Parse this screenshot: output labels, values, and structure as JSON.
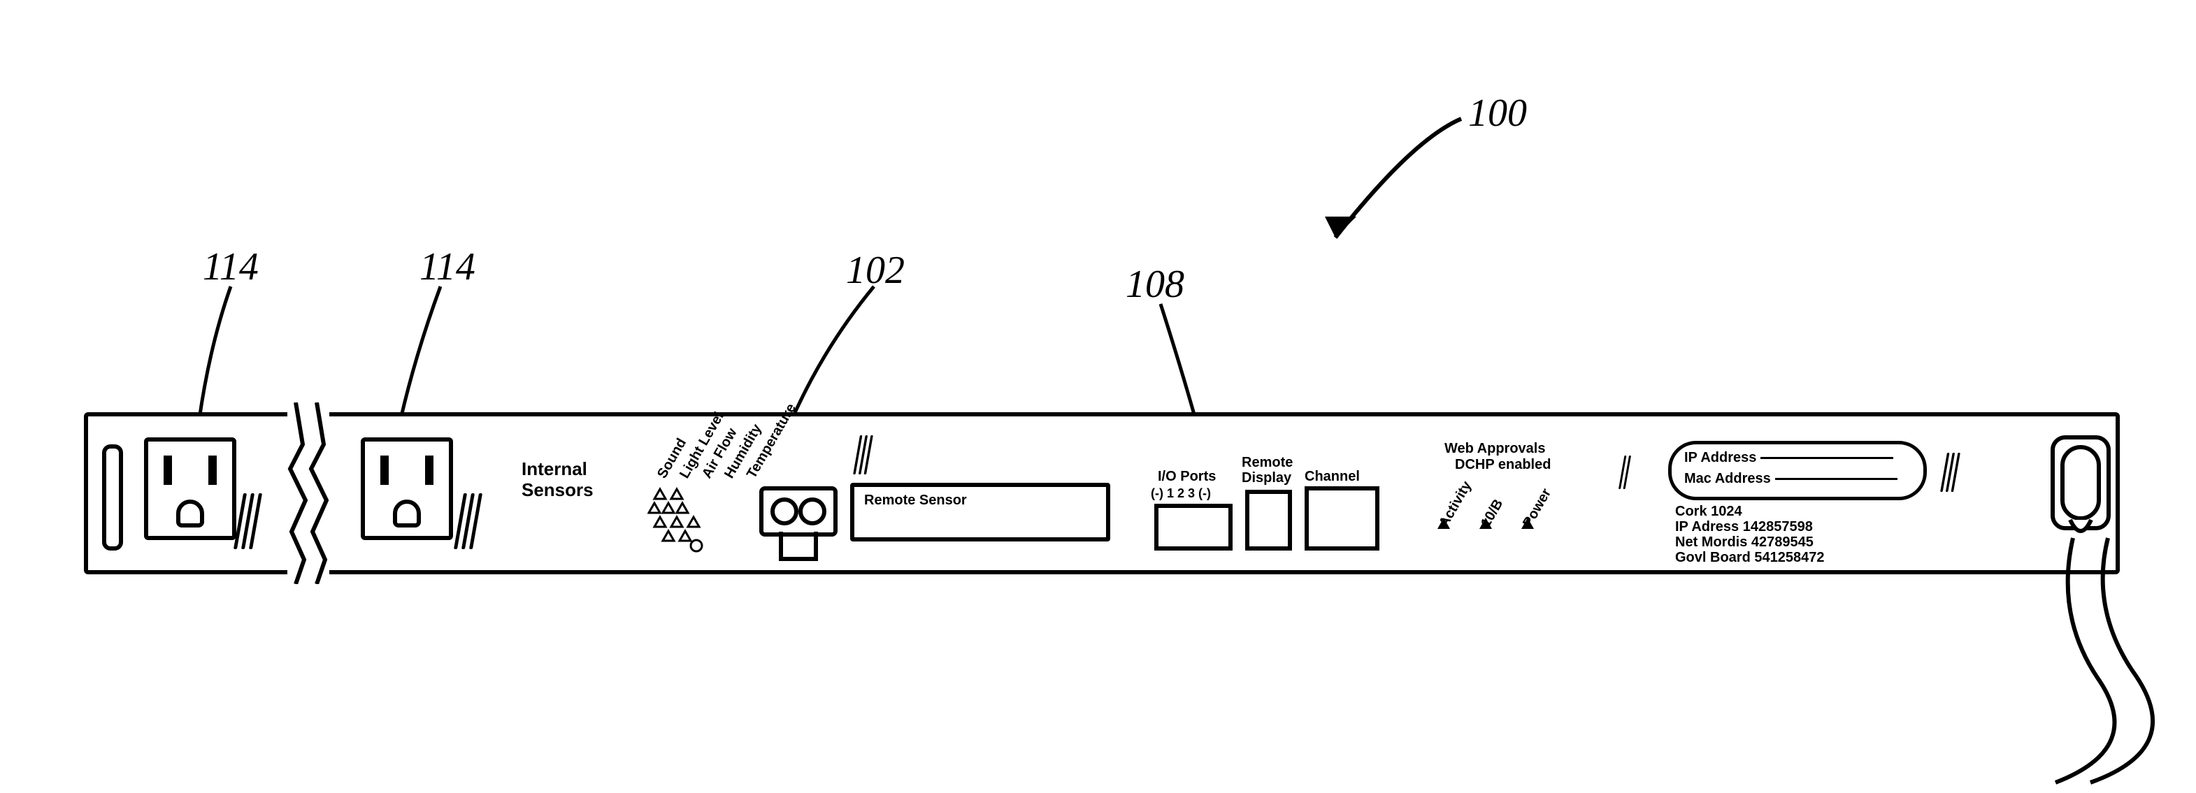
{
  "callouts": {
    "c100": "100",
    "c102": "102",
    "c108": "108",
    "c114a": "114",
    "c114b": "114"
  },
  "device": {
    "internal_sensors": "Internal\nSensors",
    "sensor_labels": [
      "Sound",
      "Light Level",
      "Air Flow",
      "Humidity",
      "Temperature"
    ],
    "remote_sensor": "Remote Sensor",
    "io_ports": "I/O Ports",
    "io_ports_sub": "(-) 1 2 3 (-)",
    "remote_display": "Remote\nDisplay",
    "channel": "Channel",
    "web_approvals": "Web Approvals",
    "dhcp": "DCHP enabled",
    "leds": [
      "Activity",
      "10/B",
      "Power"
    ],
    "addr_box": {
      "ip": "IP Address",
      "mac": "Mac Address"
    },
    "info": {
      "l1": "Cork 1024",
      "l2": "IP Adress 142857598",
      "l3": "Net Mordis  42789545",
      "l4": "Govl Board  541258472"
    }
  },
  "colors": {
    "stroke": "#000000",
    "bg": "#ffffff"
  }
}
